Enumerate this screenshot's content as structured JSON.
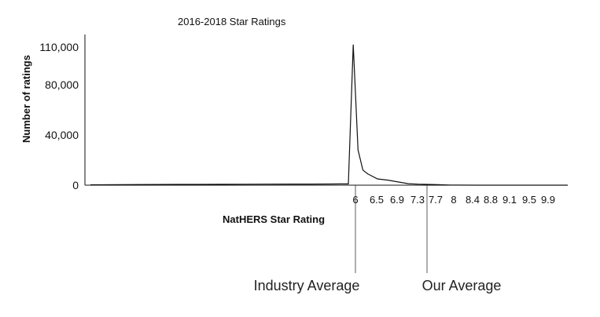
{
  "chart_data": {
    "type": "line",
    "title": "2016-2018 Star Ratings",
    "xlabel": "NatHERS Star Rating",
    "ylabel": "Number of ratings",
    "ylim": [
      0,
      110000
    ],
    "yticks": [
      {
        "value": 0,
        "label": "0"
      },
      {
        "value": 40000,
        "label": "40,000"
      },
      {
        "value": 80000,
        "label": "80,000"
      },
      {
        "value": 110000,
        "label": "110,000"
      }
    ],
    "xticks": [
      "6",
      "6.5",
      "6.9",
      "7.3",
      "7.7",
      "8",
      "8.4",
      "8.8",
      "9.1",
      "9.5",
      "9.9"
    ],
    "x": [
      0,
      1,
      1.5,
      2,
      2.5,
      3,
      3.5,
      4,
      4.5,
      5,
      5.5,
      5.7,
      5.9,
      6,
      6.1,
      6.2,
      6.3,
      6.5,
      6.7,
      6.9,
      7.1,
      7.3,
      7.5,
      7.7,
      7.9,
      8,
      8.4,
      8.8,
      9.1,
      9.5,
      9.9,
      10
    ],
    "values": [
      300,
      500,
      550,
      600,
      650,
      700,
      750,
      800,
      850,
      900,
      950,
      1000,
      1000,
      112000,
      28000,
      12000,
      9000,
      5000,
      4000,
      2500,
      1200,
      800,
      600,
      400,
      100,
      50,
      30,
      20,
      15,
      10,
      10,
      5
    ],
    "grid": false,
    "annotations": [
      {
        "label": "Industry Average",
        "x": 6
      },
      {
        "label": "Our Average",
        "x": 7.5
      }
    ]
  }
}
